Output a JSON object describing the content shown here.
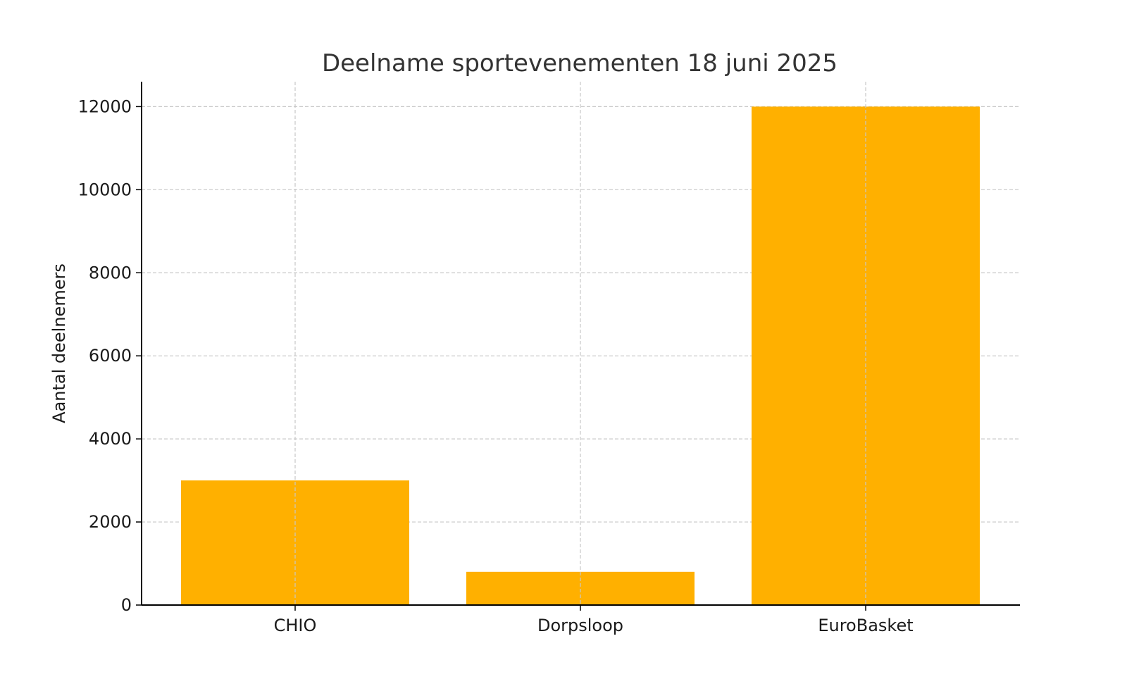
{
  "chart_data": {
    "type": "bar",
    "title": "Deelname sportevenementen 18 juni 2025",
    "xlabel": "",
    "ylabel": "Aantal deelnemers",
    "categories": [
      "CHIO",
      "Dorpsloop",
      "EuroBasket"
    ],
    "values": [
      3000,
      800,
      12000
    ],
    "ylim": [
      0,
      12600
    ],
    "yticks": [
      0,
      2000,
      4000,
      6000,
      8000,
      10000,
      12000
    ],
    "ytick_labels": [
      "0",
      "2000",
      "4000",
      "6000",
      "8000",
      "10000",
      "12000"
    ],
    "grid": true,
    "bar_color": "#FFB000"
  }
}
